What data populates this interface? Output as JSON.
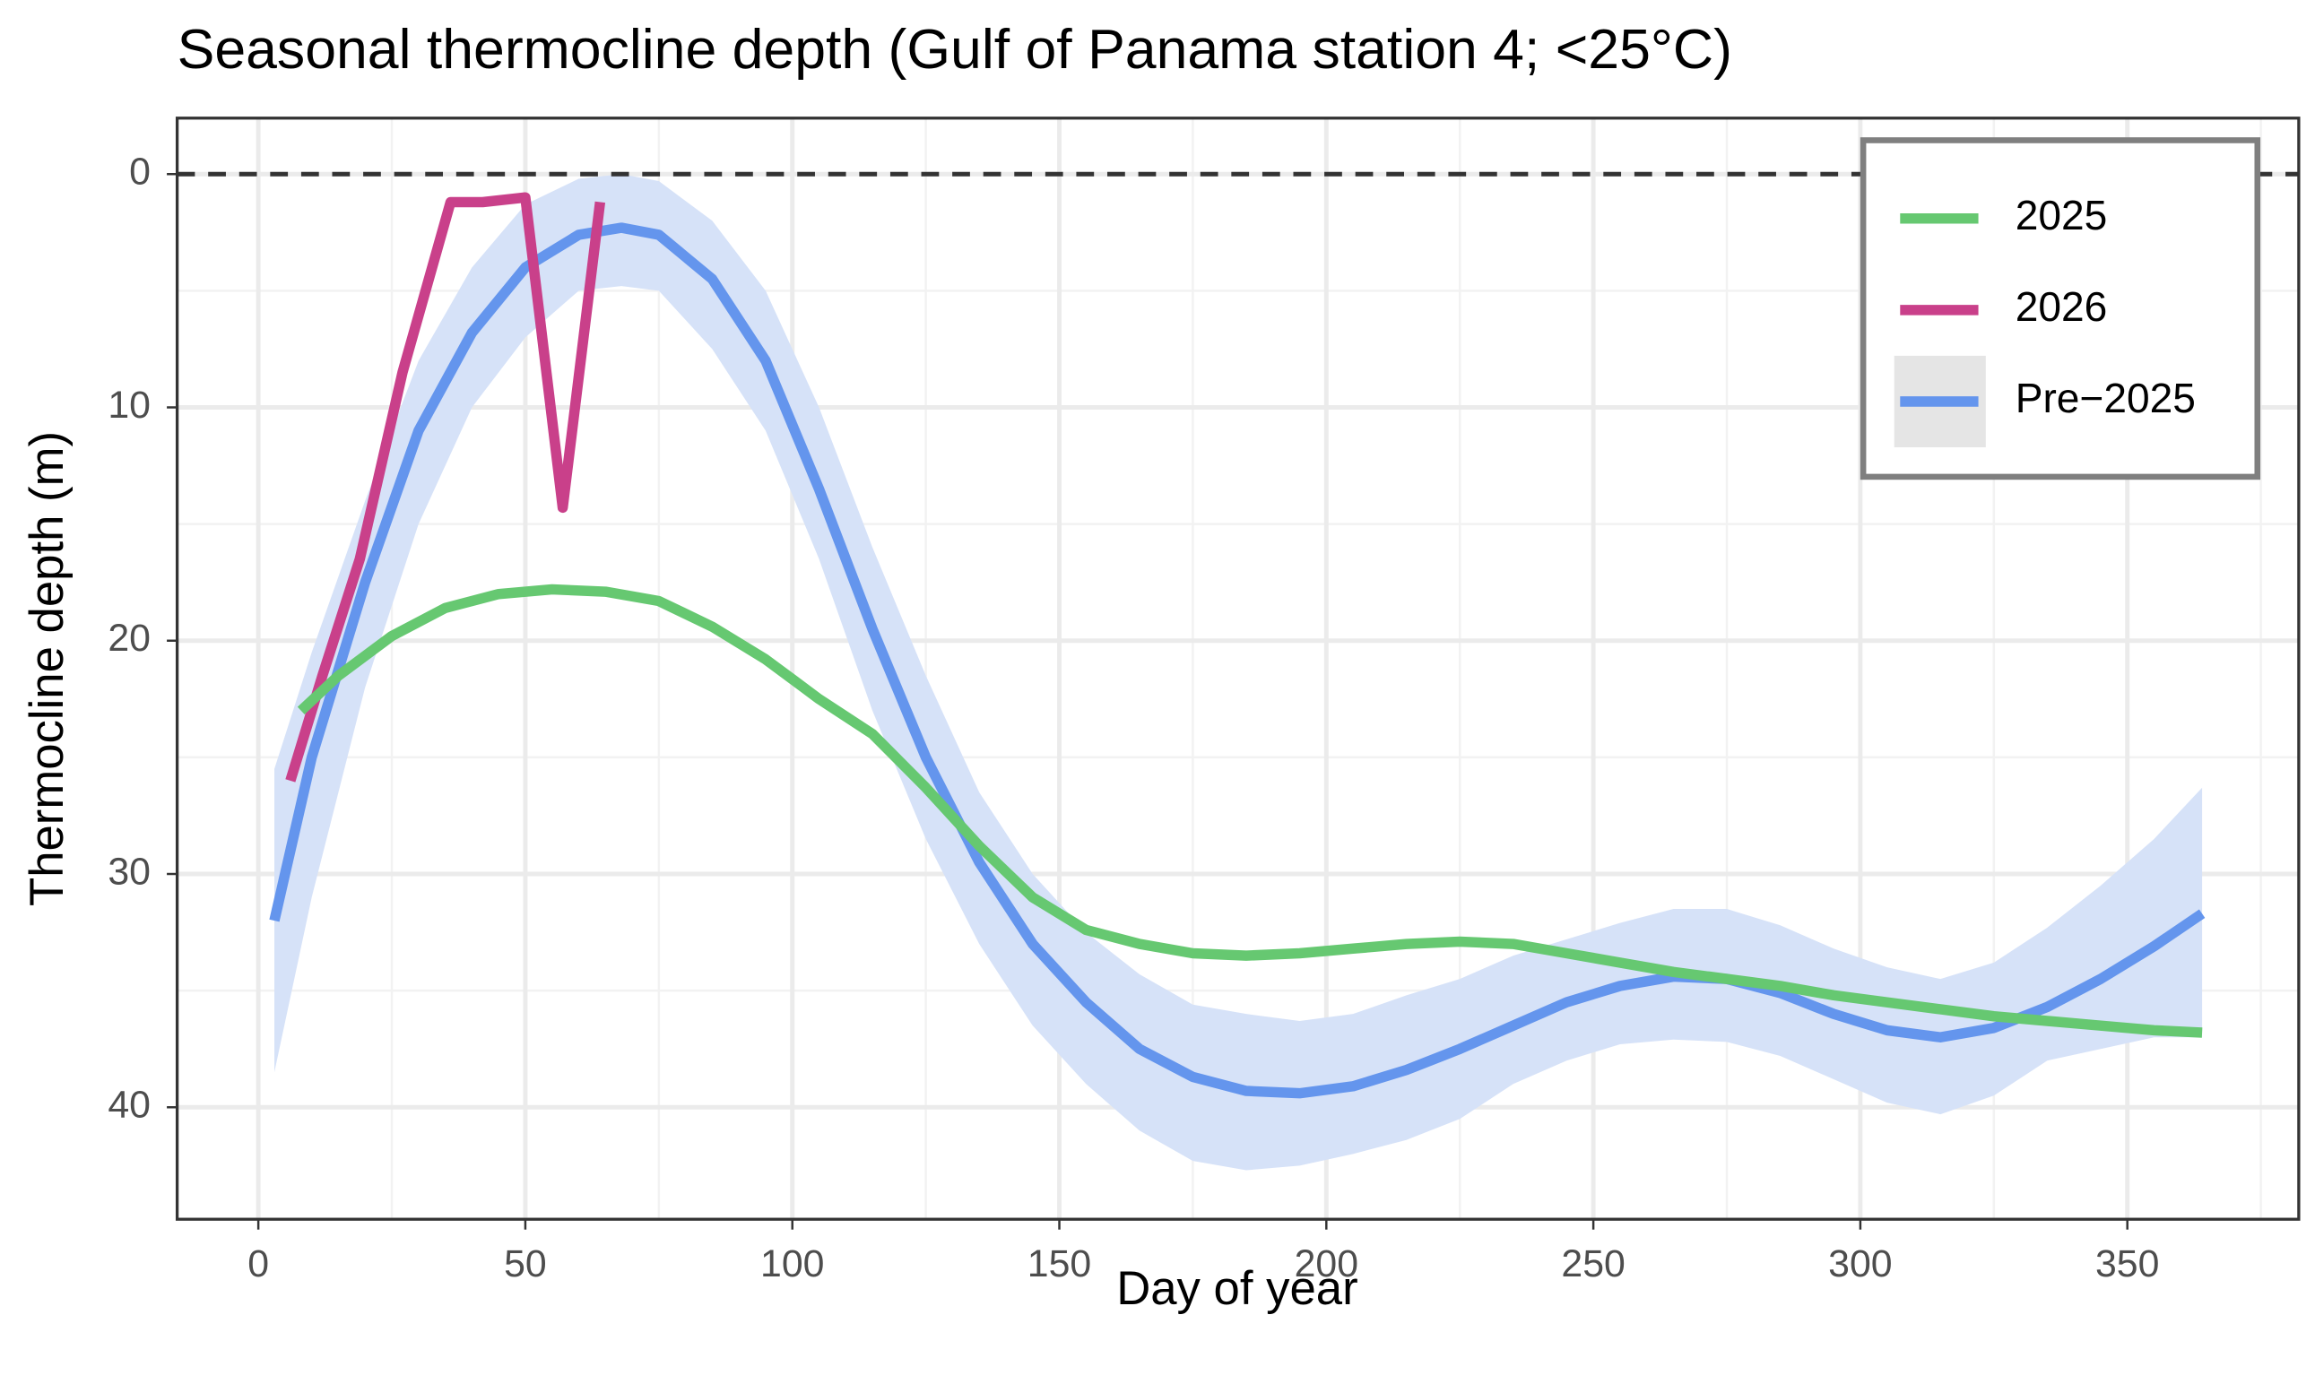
{
  "chart_data": {
    "type": "line",
    "title": "Seasonal thermocline depth (Gulf of Panama station 4; <25°C)",
    "x_label": "Day of year",
    "y_label": "Thermocline depth (m)",
    "xlim": [
      -15.2,
      382.1
    ],
    "ylim": [
      -2.4,
      44.8
    ],
    "y_reversed": true,
    "xticks": [
      0,
      50,
      100,
      150,
      200,
      250,
      300,
      350
    ],
    "yticks": [
      0,
      10,
      20,
      30,
      40
    ],
    "xminor": [
      25,
      75,
      125,
      175,
      225,
      275,
      325,
      375
    ],
    "yminor": [
      5,
      15,
      25,
      35
    ],
    "grid": true,
    "hline": 0,
    "legend": "top-right",
    "series": [
      {
        "name": "2025",
        "color": "#66c871",
        "x": [
          8,
          15,
          25,
          35,
          45,
          55,
          65,
          75,
          85,
          95,
          105,
          115,
          125,
          135,
          145,
          155,
          165,
          175,
          185,
          195,
          205,
          215,
          225,
          235,
          245,
          255,
          265,
          275,
          285,
          295,
          305,
          315,
          325,
          335,
          345,
          355,
          364
        ],
        "values": [
          23,
          21.5,
          19.8,
          18.6,
          18,
          17.8,
          17.9,
          18.3,
          19.4,
          20.8,
          22.5,
          24,
          26.3,
          28.8,
          31,
          32.4,
          33,
          33.4,
          33.5,
          33.4,
          33.2,
          33,
          32.9,
          33,
          33.4,
          33.8,
          34.2,
          34.5,
          34.8,
          35.2,
          35.5,
          35.8,
          36.1,
          36.3,
          36.5,
          36.7,
          36.8
        ]
      },
      {
        "name": "2026",
        "color": "#c9408a",
        "x": [
          6,
          12,
          19,
          27,
          36,
          42,
          50,
          57,
          64
        ],
        "values": [
          26,
          21.5,
          16.5,
          8.5,
          1.2,
          1.2,
          1,
          14.3,
          1.2
        ]
      },
      {
        "name": "Pre−2025",
        "color": "#6495ed",
        "band_color": "#d6e2f8",
        "x": [
          3,
          10,
          20,
          30,
          40,
          50,
          60,
          68,
          75,
          85,
          95,
          105,
          115,
          125,
          135,
          145,
          155,
          165,
          175,
          185,
          195,
          205,
          215,
          225,
          235,
          245,
          255,
          265,
          275,
          285,
          295,
          305,
          315,
          325,
          335,
          345,
          355,
          364
        ],
        "values": [
          32,
          25,
          17.5,
          11,
          6.8,
          4,
          2.6,
          2.3,
          2.6,
          4.5,
          8,
          13.5,
          19.5,
          25,
          29.5,
          33,
          35.5,
          37.5,
          38.7,
          39.3,
          39.4,
          39.1,
          38.4,
          37.5,
          36.5,
          35.5,
          34.8,
          34.4,
          34.5,
          35.1,
          36,
          36.7,
          37,
          36.6,
          35.7,
          34.5,
          33.1,
          31.7
        ],
        "lower": [
          25.5,
          20.5,
          14,
          8,
          4,
          1.3,
          0.2,
          0,
          0.3,
          2,
          5,
          10,
          16,
          21.5,
          26.5,
          30,
          32.5,
          34.3,
          35.6,
          36,
          36.3,
          36,
          35.2,
          34.5,
          33.5,
          32.8,
          32.1,
          31.5,
          31.5,
          32.2,
          33.2,
          34,
          34.5,
          33.8,
          32.3,
          30.5,
          28.5,
          26.3
        ],
        "upper": [
          38.5,
          31,
          22,
          15,
          10,
          7,
          5,
          4.8,
          5,
          7.5,
          11,
          16.5,
          23,
          28.5,
          33,
          36.5,
          39,
          41,
          42.3,
          42.7,
          42.5,
          42,
          41.4,
          40.5,
          39,
          38,
          37.3,
          37.1,
          37.2,
          37.8,
          38.8,
          39.8,
          40.3,
          39.5,
          38,
          37.5,
          37,
          37
        ]
      }
    ]
  }
}
